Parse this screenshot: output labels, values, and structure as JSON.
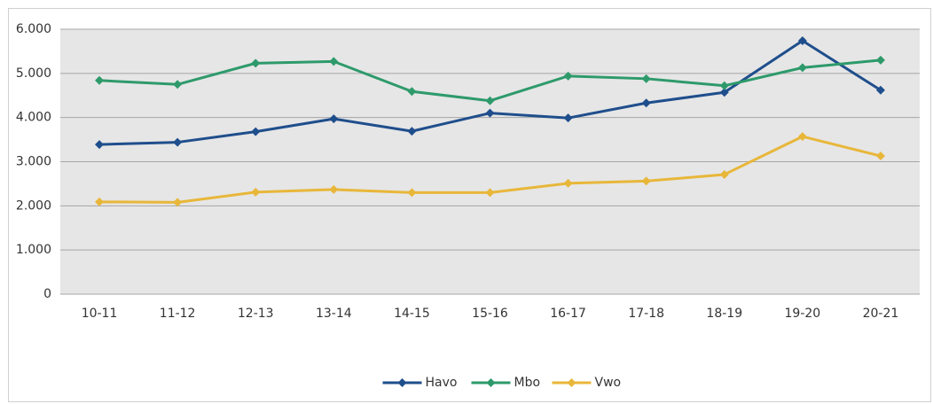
{
  "chart_data": {
    "type": "line",
    "categories": [
      "10-11",
      "11-12",
      "12-13",
      "13-14",
      "14-15",
      "15-16",
      "16-17",
      "17-18",
      "18-19",
      "19-20",
      "20-21"
    ],
    "series": [
      {
        "name": "Havo",
        "color": "#1f4e8c",
        "values": [
          3390,
          3440,
          3680,
          3970,
          3690,
          4100,
          3990,
          4330,
          4570,
          5740,
          4620
        ]
      },
      {
        "name": "Mbo",
        "color": "#2e9a6b",
        "values": [
          4840,
          4750,
          5230,
          5270,
          4590,
          4380,
          4940,
          4880,
          4720,
          5130,
          5300
        ]
      },
      {
        "name": "Vwo",
        "color": "#e8b73a",
        "values": [
          2090,
          2080,
          2310,
          2370,
          2300,
          2300,
          2510,
          2560,
          2710,
          3570,
          3130
        ]
      }
    ],
    "ylim": [
      0,
      6000
    ],
    "yticks": [
      0,
      {
        "value": 1000,
        "label": "1.000"
      },
      {
        "value": 2000,
        "label": "2.000"
      },
      {
        "value": 3000,
        "label": "3.000"
      },
      {
        "value": 4000,
        "label": "4.000"
      },
      {
        "value": 5000,
        "label": "5.000"
      },
      {
        "value": 6000,
        "label": "6.000"
      }
    ],
    "grid": true,
    "legend": "bottom"
  }
}
